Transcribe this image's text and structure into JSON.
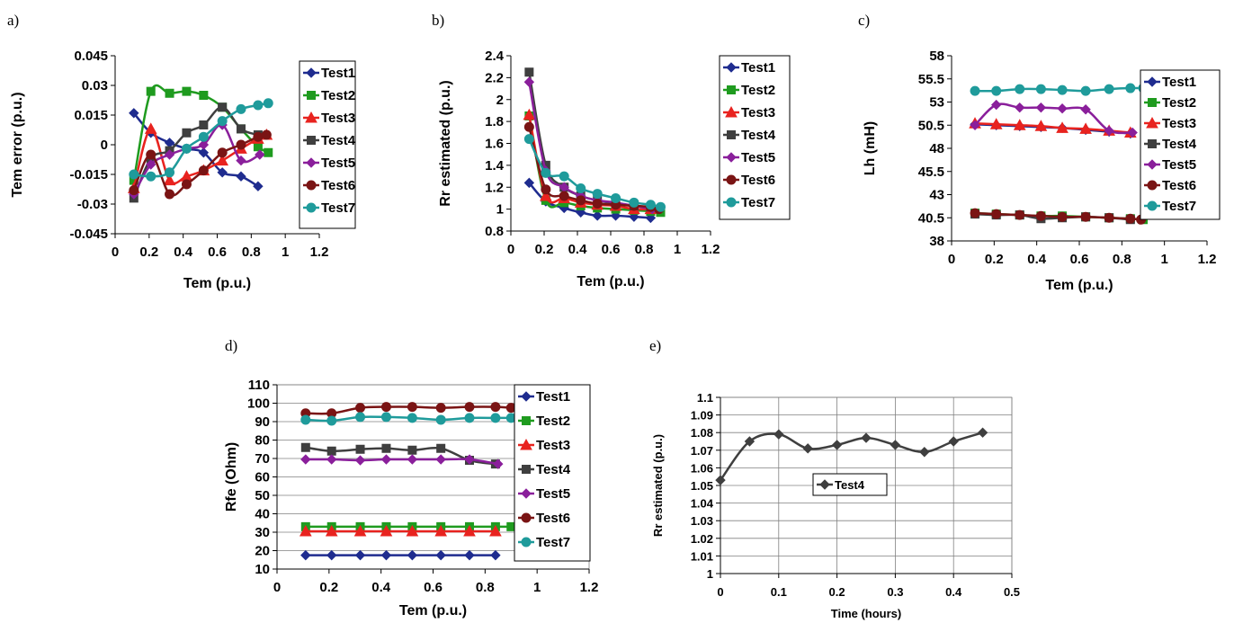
{
  "colors": {
    "Test1": "#1f2c8f",
    "Test2": "#1f9b1f",
    "Test3": "#e8231f",
    "Test4": "#3f3f3f",
    "Test5": "#8a1f9b",
    "Test6": "#7a1414",
    "Test7": "#1f9b9b"
  },
  "chart_data": [
    {
      "id": "a",
      "panel_label": "a)",
      "type": "line",
      "xlabel": "Tem (p.u.)",
      "ylabel": "Tem error (p.u.)",
      "xlim": [
        0,
        1.2
      ],
      "ylim": [
        -0.045,
        0.045
      ],
      "xticks": [
        0,
        0.2,
        0.4,
        0.6,
        0.8,
        1,
        1.2
      ],
      "xtick_labels": [
        "0",
        "0.2",
        "0.4",
        "0.6",
        "0.8",
        "1",
        "1.2"
      ],
      "yticks": [
        -0.045,
        -0.03,
        -0.015,
        0,
        0.015,
        0.03,
        0.045
      ],
      "ytick_labels": [
        "-0.045",
        "-0.03",
        "-0.015",
        "0",
        "0.015",
        "0.03",
        "0.045"
      ],
      "legend_position": "right",
      "series": [
        {
          "name": "Test1",
          "marker": "diamond",
          "x": [
            0.11,
            0.21,
            0.32,
            0.42,
            0.52,
            0.63,
            0.74,
            0.84
          ],
          "y": [
            0.016,
            0.006,
            0.001,
            -0.002,
            -0.004,
            -0.014,
            -0.016,
            -0.021
          ]
        },
        {
          "name": "Test2",
          "marker": "square",
          "x": [
            0.11,
            0.21,
            0.32,
            0.42,
            0.52,
            0.63,
            0.74,
            0.84,
            0.9
          ],
          "y": [
            -0.018,
            0.027,
            0.026,
            0.027,
            0.025,
            0.019,
            0.008,
            -0.001,
            -0.004
          ]
        },
        {
          "name": "Test3",
          "marker": "triangle",
          "x": [
            0.11,
            0.21,
            0.32,
            0.42,
            0.52,
            0.63,
            0.74,
            0.84,
            0.89
          ],
          "y": [
            -0.022,
            0.008,
            -0.018,
            -0.016,
            -0.013,
            -0.008,
            -0.002,
            0.003,
            0.005
          ]
        },
        {
          "name": "Test4",
          "marker": "square",
          "x": [
            0.11,
            0.21,
            0.32,
            0.42,
            0.52,
            0.63,
            0.74,
            0.84
          ],
          "y": [
            -0.027,
            -0.007,
            -0.003,
            0.006,
            0.01,
            0.019,
            0.008,
            0.005
          ]
        },
        {
          "name": "Test5",
          "marker": "diamond",
          "x": [
            0.11,
            0.21,
            0.32,
            0.42,
            0.52,
            0.63,
            0.74,
            0.85
          ],
          "y": [
            -0.025,
            -0.01,
            -0.005,
            -0.002,
            0.0,
            0.01,
            -0.008,
            -0.005
          ]
        },
        {
          "name": "Test6",
          "marker": "circle",
          "x": [
            0.11,
            0.21,
            0.32,
            0.42,
            0.52,
            0.63,
            0.74,
            0.84,
            0.89
          ],
          "y": [
            -0.023,
            -0.005,
            -0.025,
            -0.02,
            -0.013,
            -0.004,
            0.0,
            0.004,
            0.005
          ]
        },
        {
          "name": "Test7",
          "marker": "circle",
          "x": [
            0.11,
            0.21,
            0.32,
            0.42,
            0.52,
            0.63,
            0.74,
            0.84,
            0.9
          ],
          "y": [
            -0.015,
            -0.016,
            -0.014,
            -0.002,
            0.004,
            0.012,
            0.018,
            0.02,
            0.021
          ]
        }
      ]
    },
    {
      "id": "b",
      "panel_label": "b)",
      "type": "line",
      "xlabel": "Tem (p.u.)",
      "ylabel": "Rr estimated  (p.u.)",
      "xlim": [
        0,
        1.2
      ],
      "ylim": [
        0.8,
        2.4
      ],
      "xticks": [
        0,
        0.2,
        0.4,
        0.6,
        0.8,
        1,
        1.2
      ],
      "xtick_labels": [
        "0",
        "0.2",
        "0.4",
        "0.6",
        "0.8",
        "1",
        "1.2"
      ],
      "yticks": [
        0.8,
        1,
        1.2,
        1.4,
        1.6,
        1.8,
        2,
        2.2,
        2.4
      ],
      "ytick_labels": [
        "0.8",
        "1",
        "1.2",
        "1.4",
        "1.6",
        "1.8",
        "2",
        "2.2",
        "2.4"
      ],
      "legend_position": "right",
      "series": [
        {
          "name": "Test1",
          "marker": "diamond",
          "x": [
            0.11,
            0.21,
            0.32,
            0.42,
            0.52,
            0.63,
            0.74,
            0.84
          ],
          "y": [
            1.24,
            1.07,
            1.01,
            0.97,
            0.94,
            0.94,
            0.93,
            0.92
          ]
        },
        {
          "name": "Test2",
          "marker": "square",
          "x": [
            0.11,
            0.21,
            0.32,
            0.42,
            0.52,
            0.63,
            0.74,
            0.84,
            0.9
          ],
          "y": [
            1.85,
            1.08,
            1.06,
            1.03,
            1.01,
            1.0,
            0.99,
            0.98,
            0.97
          ]
        },
        {
          "name": "Test3",
          "marker": "triangle",
          "x": [
            0.11,
            0.21,
            0.32,
            0.42,
            0.52,
            0.63,
            0.74,
            0.84
          ],
          "y": [
            1.86,
            1.12,
            1.1,
            1.06,
            1.04,
            1.03,
            1.0,
            1.0
          ]
        },
        {
          "name": "Test4",
          "marker": "square",
          "x": [
            0.11,
            0.21,
            0.32,
            0.42,
            0.52,
            0.63,
            0.74,
            0.84
          ],
          "y": [
            2.25,
            1.4,
            1.2,
            1.12,
            1.08,
            1.05,
            1.03,
            1.02
          ]
        },
        {
          "name": "Test5",
          "marker": "diamond",
          "x": [
            0.11,
            0.21,
            0.32,
            0.42,
            0.52,
            0.63,
            0.74,
            0.85
          ],
          "y": [
            2.16,
            1.35,
            1.2,
            1.12,
            1.08,
            1.06,
            1.03,
            1.0
          ]
        },
        {
          "name": "Test6",
          "marker": "circle",
          "x": [
            0.11,
            0.21,
            0.32,
            0.42,
            0.52,
            0.63,
            0.74,
            0.84,
            0.89
          ],
          "y": [
            1.75,
            1.18,
            1.12,
            1.08,
            1.05,
            1.04,
            1.03,
            1.02,
            1.0
          ]
        },
        {
          "name": "Test7",
          "marker": "circle",
          "x": [
            0.11,
            0.21,
            0.32,
            0.42,
            0.52,
            0.63,
            0.74,
            0.84,
            0.9
          ],
          "y": [
            1.64,
            1.33,
            1.3,
            1.19,
            1.14,
            1.1,
            1.06,
            1.04,
            1.02
          ]
        }
      ]
    },
    {
      "id": "c",
      "panel_label": "c)",
      "type": "line",
      "xlabel": "Tem (p.u.)",
      "ylabel": "Lh (mH)",
      "xlim": [
        0,
        1.2
      ],
      "ylim": [
        38,
        58
      ],
      "xticks": [
        0,
        0.2,
        0.4,
        0.6,
        0.8,
        1,
        1.2
      ],
      "xtick_labels": [
        "0",
        "0.2",
        "0.4",
        "0.6",
        "0.8",
        "1",
        "1.2"
      ],
      "yticks": [
        38,
        40.5,
        43,
        45.5,
        48,
        50.5,
        53,
        55.5,
        58
      ],
      "ytick_labels": [
        "38",
        "40.5",
        "43",
        "45.5",
        "48",
        "50.5",
        "53",
        "55.5",
        "58"
      ],
      "legend_position": "right",
      "series": [
        {
          "name": "Test1",
          "marker": "diamond",
          "x": [
            0.11,
            0.21,
            0.32,
            0.42,
            0.52,
            0.63,
            0.74,
            0.84
          ],
          "y": [
            50.6,
            50.5,
            50.4,
            50.3,
            50.2,
            50.0,
            49.8,
            49.6
          ]
        },
        {
          "name": "Test2",
          "marker": "square",
          "x": [
            0.11,
            0.21,
            0.32,
            0.42,
            0.52,
            0.63,
            0.74,
            0.84,
            0.9
          ],
          "y": [
            41.0,
            40.9,
            40.8,
            40.7,
            40.7,
            40.6,
            40.5,
            40.4,
            40.3
          ]
        },
        {
          "name": "Test3",
          "marker": "triangle",
          "x": [
            0.11,
            0.21,
            0.32,
            0.42,
            0.52,
            0.63,
            0.74,
            0.84
          ],
          "y": [
            50.7,
            50.6,
            50.5,
            50.4,
            50.2,
            50.1,
            49.9,
            49.7
          ]
        },
        {
          "name": "Test4",
          "marker": "square",
          "x": [
            0.11,
            0.21,
            0.32,
            0.42,
            0.52,
            0.63,
            0.74,
            0.84
          ],
          "y": [
            40.9,
            40.8,
            40.8,
            40.4,
            40.5,
            40.6,
            40.5,
            40.3
          ]
        },
        {
          "name": "Test5",
          "marker": "diamond",
          "x": [
            0.11,
            0.21,
            0.32,
            0.42,
            0.52,
            0.63,
            0.74,
            0.85
          ],
          "y": [
            50.5,
            52.7,
            52.4,
            52.4,
            52.3,
            52.2,
            49.9,
            49.7
          ]
        },
        {
          "name": "Test6",
          "marker": "circle",
          "x": [
            0.11,
            0.21,
            0.32,
            0.42,
            0.52,
            0.63,
            0.74,
            0.84,
            0.89
          ],
          "y": [
            41.0,
            40.9,
            40.8,
            40.7,
            40.6,
            40.6,
            40.5,
            40.4,
            40.3
          ]
        },
        {
          "name": "Test7",
          "marker": "circle",
          "x": [
            0.11,
            0.21,
            0.32,
            0.42,
            0.52,
            0.63,
            0.74,
            0.84,
            0.9
          ],
          "y": [
            54.2,
            54.2,
            54.4,
            54.4,
            54.3,
            54.2,
            54.4,
            54.5,
            54.5
          ]
        }
      ]
    },
    {
      "id": "d",
      "panel_label": "d)",
      "type": "line",
      "xlabel": "Tem (p.u.)",
      "ylabel": "Rfe (Ohm)",
      "xlim": [
        0,
        1.2
      ],
      "ylim": [
        10,
        110
      ],
      "xticks": [
        0,
        0.2,
        0.4,
        0.6,
        0.8,
        1,
        1.2
      ],
      "xtick_labels": [
        "0",
        "0.2",
        "0.4",
        "0.6",
        "0.8",
        "1",
        "1.2"
      ],
      "yticks": [
        10,
        20,
        30,
        40,
        50,
        60,
        70,
        80,
        90,
        100,
        110
      ],
      "ytick_labels": [
        "10",
        "20",
        "30",
        "40",
        "50",
        "60",
        "70",
        "80",
        "90",
        "100",
        "110"
      ],
      "grid": "horizontal",
      "legend_position": "right",
      "series": [
        {
          "name": "Test1",
          "marker": "diamond",
          "x": [
            0.11,
            0.21,
            0.32,
            0.42,
            0.52,
            0.63,
            0.74,
            0.84
          ],
          "y": [
            17.5,
            17.5,
            17.5,
            17.5,
            17.5,
            17.5,
            17.5,
            17.5
          ]
        },
        {
          "name": "Test2",
          "marker": "square",
          "x": [
            0.11,
            0.21,
            0.32,
            0.42,
            0.52,
            0.63,
            0.74,
            0.84,
            0.9
          ],
          "y": [
            33,
            33,
            33,
            33,
            33,
            33,
            33,
            33,
            33
          ]
        },
        {
          "name": "Test3",
          "marker": "triangle",
          "x": [
            0.11,
            0.21,
            0.32,
            0.42,
            0.52,
            0.63,
            0.74,
            0.84
          ],
          "y": [
            30.5,
            30.5,
            30.5,
            30.5,
            30.5,
            30.5,
            30.5,
            30.5
          ]
        },
        {
          "name": "Test4",
          "marker": "square",
          "x": [
            0.11,
            0.21,
            0.32,
            0.42,
            0.52,
            0.63,
            0.74,
            0.84
          ],
          "y": [
            76,
            74,
            75,
            75.5,
            74.5,
            75.5,
            69,
            67
          ]
        },
        {
          "name": "Test5",
          "marker": "diamond",
          "x": [
            0.11,
            0.21,
            0.32,
            0.42,
            0.52,
            0.63,
            0.74,
            0.85
          ],
          "y": [
            69.5,
            69.5,
            69,
            69.5,
            69.5,
            69.5,
            69.5,
            67
          ]
        },
        {
          "name": "Test6",
          "marker": "circle",
          "x": [
            0.11,
            0.21,
            0.32,
            0.42,
            0.52,
            0.63,
            0.74,
            0.84,
            0.9
          ],
          "y": [
            94.5,
            94.5,
            97.5,
            98,
            98,
            97.5,
            98,
            98,
            97.5
          ]
        },
        {
          "name": "Test7",
          "marker": "circle",
          "x": [
            0.11,
            0.21,
            0.32,
            0.42,
            0.52,
            0.63,
            0.74,
            0.84,
            0.9
          ],
          "y": [
            91,
            90.5,
            92.5,
            92.5,
            92,
            91,
            92,
            92,
            92
          ]
        }
      ]
    },
    {
      "id": "e",
      "panel_label": "e)",
      "type": "line",
      "xlabel": "Time (hours)",
      "ylabel": "Rr estimated  (p.u.)",
      "xlim": [
        0,
        0.5
      ],
      "ylim": [
        1,
        1.1
      ],
      "xticks": [
        0,
        0.1,
        0.2,
        0.3,
        0.4,
        0.5
      ],
      "xtick_labels": [
        "0",
        "0.1",
        "0.2",
        "0.3",
        "0.4",
        "0.5"
      ],
      "yticks": [
        1,
        1.01,
        1.02,
        1.03,
        1.04,
        1.05,
        1.06,
        1.07,
        1.08,
        1.09,
        1.1
      ],
      "ytick_labels": [
        "1",
        "1.01",
        "1.02",
        "1.03",
        "1.04",
        "1.05",
        "1.06",
        "1.07",
        "1.08",
        "1.09",
        "1.1"
      ],
      "grid": "both",
      "legend_position": "center-left",
      "series": [
        {
          "name": "Test4",
          "marker": "diamond",
          "x": [
            0,
            0.05,
            0.1,
            0.15,
            0.2,
            0.25,
            0.3,
            0.35,
            0.4,
            0.45
          ],
          "y": [
            1.053,
            1.075,
            1.079,
            1.071,
            1.073,
            1.077,
            1.073,
            1.069,
            1.075,
            1.08
          ]
        }
      ]
    }
  ]
}
